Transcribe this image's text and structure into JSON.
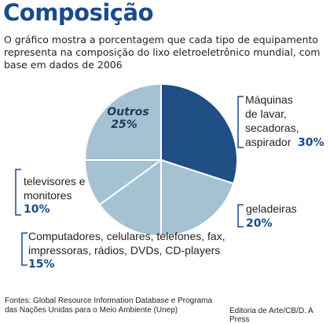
{
  "title": "Composição",
  "intro": "O gráfico mostra a porcentagem que cada tipo de equipamento representa na composição do lixo eletroeletrônico mundial, com base em dados de 2006",
  "chart_data": {
    "type": "pie",
    "slices": [
      {
        "label_lines": [
          "Máquinas",
          "de lavar,",
          "secadoras,",
          "aspirador"
        ],
        "value": 30,
        "value_label": "30%",
        "color": "#1f4f85"
      },
      {
        "label_lines": [
          "geladeiras"
        ],
        "value": 20,
        "value_label": "20%",
        "color": "#a5c2d3"
      },
      {
        "label_lines": [
          "Computadores, celulares, telefones, fax,",
          "impressoras, rádios, DVDs, CD-players"
        ],
        "value": 15,
        "value_label": "15%",
        "color": "#a5c2d3"
      },
      {
        "label_lines": [
          "televisores e",
          "monitores"
        ],
        "value": 10,
        "value_label": "10%",
        "color": "#a5c2d3"
      },
      {
        "label_lines": [
          "Outros"
        ],
        "value": 25,
        "value_label": "25%",
        "color": "#a5c2d3"
      }
    ]
  },
  "footer": {
    "sources": "Fontes: Global Resource Information Database e Programa das Nações Unidas para o Meio Ambiente (Unep)",
    "credit": "Editoria de Arte/CB/D. A Press"
  }
}
